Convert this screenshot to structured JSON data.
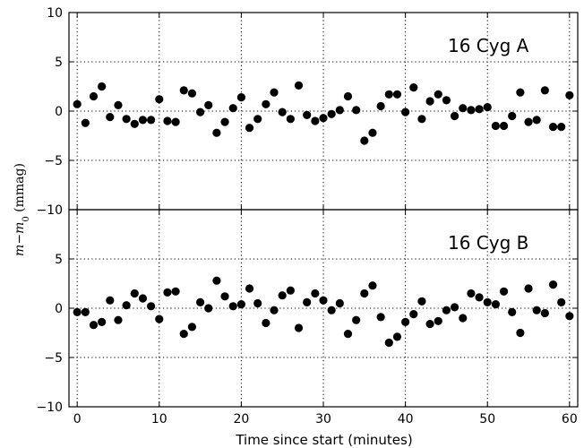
{
  "chart_data": [
    {
      "type": "scatter",
      "panel": "top",
      "label": "16 Cyg A",
      "xlim": [
        -1,
        61
      ],
      "ylim": [
        -10,
        10
      ],
      "xticks": [
        0,
        10,
        20,
        30,
        40,
        50,
        60
      ],
      "yticks": [
        -10,
        -5,
        0,
        5,
        10
      ],
      "grid": true,
      "series": [
        {
          "x": [
            0,
            1,
            2,
            3,
            4,
            5,
            6,
            7,
            8,
            9,
            10,
            11,
            12,
            13,
            14,
            15,
            16,
            17,
            18,
            19,
            20,
            21,
            22,
            23,
            24,
            25,
            26,
            27,
            28,
            29,
            30,
            31,
            32,
            33,
            34,
            35,
            36,
            37,
            38,
            39,
            40,
            41,
            42,
            43,
            44,
            45,
            46,
            47,
            48,
            49,
            50,
            51,
            52,
            53,
            54,
            55,
            56,
            57,
            58,
            59,
            60
          ],
          "y": [
            0.7,
            -1.2,
            1.5,
            2.5,
            -0.6,
            0.6,
            -0.8,
            -1.3,
            -0.9,
            -0.9,
            1.2,
            -1.0,
            -1.1,
            2.1,
            1.8,
            -0.1,
            0.6,
            -2.2,
            -1.1,
            0.3,
            1.4,
            -1.7,
            -0.8,
            0.7,
            1.9,
            -0.1,
            -0.8,
            2.6,
            -0.4,
            -1.0,
            -0.7,
            -0.3,
            0.1,
            1.5,
            0.1,
            -3.0,
            -2.2,
            0.5,
            1.7,
            1.7,
            -0.1,
            2.4,
            -0.8,
            1.0,
            1.7,
            1.1,
            -0.5,
            0.3,
            0.1,
            0.2,
            0.4,
            -1.5,
            -1.5,
            -0.5,
            1.9,
            -1.1,
            -0.9,
            2.1,
            -1.6,
            -1.6,
            1.6
          ]
        }
      ]
    },
    {
      "type": "scatter",
      "panel": "bottom",
      "label": "16 Cyg B",
      "xlim": [
        -1,
        61
      ],
      "ylim": [
        -10,
        10
      ],
      "xticks": [
        0,
        10,
        20,
        30,
        40,
        50,
        60
      ],
      "yticks": [
        -10,
        -5,
        0,
        5,
        10
      ],
      "grid": true,
      "series": [
        {
          "x": [
            0,
            1,
            2,
            3,
            4,
            5,
            6,
            7,
            8,
            9,
            10,
            11,
            12,
            13,
            14,
            15,
            16,
            17,
            18,
            19,
            20,
            21,
            22,
            23,
            24,
            25,
            26,
            27,
            28,
            29,
            30,
            31,
            32,
            33,
            34,
            35,
            36,
            37,
            38,
            39,
            40,
            41,
            42,
            43,
            44,
            45,
            46,
            47,
            48,
            49,
            50,
            51,
            52,
            53,
            54,
            55,
            56,
            57,
            58,
            59,
            60
          ],
          "y": [
            -0.4,
            -0.4,
            -1.7,
            -1.4,
            0.8,
            -1.2,
            0.3,
            1.5,
            1.0,
            0.2,
            -1.1,
            1.6,
            1.7,
            -2.6,
            -1.9,
            0.6,
            0.0,
            2.8,
            1.2,
            0.2,
            0.4,
            2.0,
            0.5,
            -1.5,
            -0.2,
            1.3,
            1.8,
            -2.0,
            0.6,
            1.5,
            0.8,
            -0.2,
            0.5,
            -2.6,
            -1.2,
            1.5,
            2.3,
            -0.9,
            -3.5,
            -2.9,
            -1.4,
            -0.6,
            0.7,
            -1.6,
            -1.3,
            -0.2,
            0.1,
            -1.0,
            1.5,
            1.1,
            0.6,
            0.4,
            1.7,
            -0.4,
            -2.5,
            2.0,
            -0.2,
            -0.5,
            2.4,
            0.6,
            -0.8
          ]
        }
      ]
    }
  ],
  "xlabel": "Time since start (minutes)",
  "ylabel": "m−m₀ (mmag)"
}
